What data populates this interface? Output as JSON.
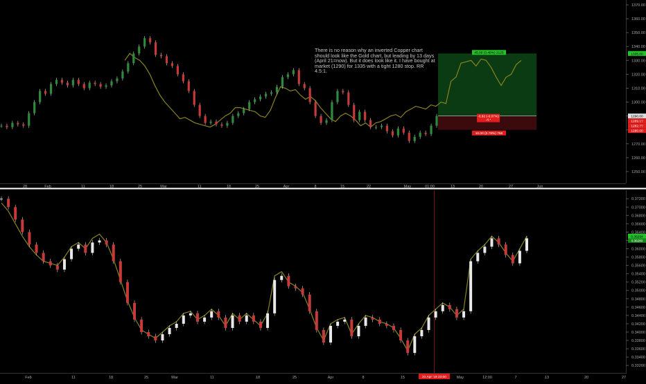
{
  "colors": {
    "background": "#000000",
    "divider": "#ffffff",
    "gold_line": "#8a8420",
    "candle_up": "#2e8b3e",
    "candle_down": "#c73a3a",
    "candle_hl": "#d9d9d9",
    "profit_fill": "#0b3b12",
    "loss_fill": "#3a0a0d",
    "label_green": "#26c12a",
    "label_red": "#e01e1e",
    "axis_text": "#aaaaaa"
  },
  "annotation": {
    "text": "There is no reason why an inverted Copper chart should look like the Gold chart, but leading by 13 days (April 21=now). But it does look like it. I have bought at market (1290) for 1335 with a tight 1280 stop. RR 4.5:1."
  },
  "position_labels": {
    "target": "45.00 (3.49%) 2125",
    "entry": "-0.92 (-0.07%)",
    "entry_sub": "-4.*",
    "stop": "10.00 (0.78%) 758"
  },
  "chart_data": [
    {
      "type": "line",
      "panel": "top",
      "yticks": [
        1250,
        1260,
        1270,
        1280,
        1290,
        1300,
        1310,
        1320,
        1330,
        1340,
        1350,
        1360,
        1370
      ],
      "ylim": [
        1243,
        1372
      ],
      "xticks": [
        "28",
        "Feb",
        "11",
        "18",
        "25",
        "Mar",
        "11",
        "18",
        "25",
        "Apr",
        "8",
        "15",
        "22",
        "May",
        "01:00",
        "13",
        "20",
        "27",
        "Jun"
      ],
      "price_labels": [
        {
          "text": "1335.00",
          "kind": "target"
        },
        {
          "text": "1290.00",
          "kind": "entry"
        },
        {
          "text": "1289.1?",
          "kind": "entry_sub"
        },
        {
          "text": "1282.??",
          "kind": "small_red"
        },
        {
          "text": "1280.00",
          "kind": "stop"
        }
      ],
      "series": [
        {
          "role": "candles",
          "values": [
            1283,
            1282,
            1285,
            1284,
            1283,
            1292,
            1300,
            1308,
            1306,
            1313,
            1316,
            1314,
            1312,
            1316,
            1313,
            1310,
            1314,
            1313,
            1311,
            1312,
            1315,
            1317,
            1322,
            1328,
            1335,
            1340,
            1346,
            1343,
            1334,
            1333,
            1328,
            1326,
            1320,
            1315,
            1308,
            1298,
            1290,
            1285,
            1286,
            1284,
            1283,
            1285,
            1290,
            1292,
            1295,
            1300,
            1302,
            1304,
            1306,
            1307,
            1311,
            1318,
            1320,
            1323,
            1313,
            1310,
            1300,
            1290,
            1285,
            1287,
            1300,
            1308,
            1307,
            1298,
            1287,
            1293,
            1287,
            1282,
            1282,
            1283,
            1279,
            1276,
            1281,
            1278,
            1272,
            1275,
            1278,
            1277,
            1283,
            1290
          ]
        },
        {
          "role": "gold_overlay",
          "values": [
            1330,
            1335,
            1332,
            1330,
            1326,
            1320,
            1312,
            1305,
            1300,
            1296,
            1292,
            1288,
            1289,
            1287,
            1285,
            1284,
            1283,
            1282,
            1284,
            1287,
            1290,
            1292,
            1296,
            1296,
            1295,
            1294,
            1293,
            1290,
            1289,
            1294,
            1303,
            1311,
            1310,
            1308,
            1309,
            1305,
            1302,
            1304,
            1301,
            1296,
            1292,
            1288,
            1286,
            1290,
            1292,
            1290,
            1287,
            1283,
            1285,
            1282,
            1285,
            1286,
            1288,
            1290,
            1291,
            1289,
            1293,
            1295,
            1297,
            1296,
            1295,
            1298,
            1297,
            1300,
            1299,
            1315,
            1318,
            1328,
            1329,
            1330,
            1326,
            1331,
            1330,
            1325,
            1318,
            1312,
            1318,
            1320,
            1327,
            1330
          ]
        }
      ]
    },
    {
      "type": "line",
      "panel": "bottom",
      "yticks": [
        0.332,
        0.334,
        0.336,
        0.338,
        0.34,
        0.342,
        0.344,
        0.346,
        0.348,
        0.35,
        0.352,
        0.354,
        0.356,
        0.358,
        0.36,
        0.362,
        0.364,
        0.366,
        0.368,
        0.37,
        0.372
      ],
      "ylim": [
        0.3307,
        0.3732
      ],
      "xticks": [
        "Feb",
        "11",
        "18",
        "25",
        "Mar",
        "11",
        "18",
        "25",
        "Apr",
        "8",
        "15",
        "22",
        "May",
        "12:00",
        "May",
        "7",
        "13",
        "20",
        "27"
      ],
      "crosshair_label": "21 Apr '19  23:00",
      "price_labels": [
        {
          "text": "0.36294",
          "kind": "current"
        },
        {
          "text": "0.36280",
          "kind": "current_sub"
        }
      ],
      "series": [
        {
          "role": "inverted_copper_candles",
          "values": [
            0.372,
            0.37,
            0.367,
            0.364,
            0.361,
            0.359,
            0.357,
            0.356,
            0.355,
            0.3575,
            0.36,
            0.361,
            0.359,
            0.3615,
            0.362,
            0.361,
            0.357,
            0.352,
            0.347,
            0.343,
            0.34,
            0.339,
            0.338,
            0.3395,
            0.341,
            0.342,
            0.344,
            0.3445,
            0.3425,
            0.3435,
            0.345,
            0.3435,
            0.341,
            0.344,
            0.3425,
            0.344,
            0.3425,
            0.341,
            0.3445,
            0.3525,
            0.3535,
            0.351,
            0.3505,
            0.349,
            0.345,
            0.3405,
            0.3375,
            0.3415,
            0.3425,
            0.343,
            0.339,
            0.3415,
            0.3435,
            0.343,
            0.342,
            0.3415,
            0.3405,
            0.338,
            0.335,
            0.339,
            0.3405,
            0.3435,
            0.345,
            0.3465,
            0.3455,
            0.3435,
            0.345,
            0.357,
            0.359,
            0.3605,
            0.3625,
            0.361,
            0.3585,
            0.3565,
            0.3595,
            0.3625
          ]
        },
        {
          "role": "gold_overlay",
          "values": [
            0.371,
            0.369,
            0.366,
            0.363,
            0.3605,
            0.3585,
            0.357,
            0.3565,
            0.356,
            0.358,
            0.3605,
            0.3615,
            0.36,
            0.3625,
            0.3635,
            0.3615,
            0.3575,
            0.3525,
            0.3475,
            0.3435,
            0.3405,
            0.3395,
            0.3385,
            0.34,
            0.3415,
            0.3425,
            0.3445,
            0.345,
            0.343,
            0.344,
            0.3455,
            0.344,
            0.3415,
            0.3445,
            0.343,
            0.3445,
            0.343,
            0.3415,
            0.3445,
            0.3535,
            0.3545,
            0.352,
            0.351,
            0.3495,
            0.3455,
            0.341,
            0.338,
            0.342,
            0.343,
            0.3435,
            0.3395,
            0.342,
            0.344,
            0.3435,
            0.3425,
            0.342,
            0.341,
            0.3385,
            0.3355,
            0.3395,
            0.341,
            0.344,
            0.3455,
            0.347,
            0.346,
            0.344,
            0.3455,
            0.3575,
            0.3595,
            0.361,
            0.363,
            0.3615,
            0.359,
            0.357,
            0.36,
            0.363
          ]
        }
      ]
    }
  ]
}
